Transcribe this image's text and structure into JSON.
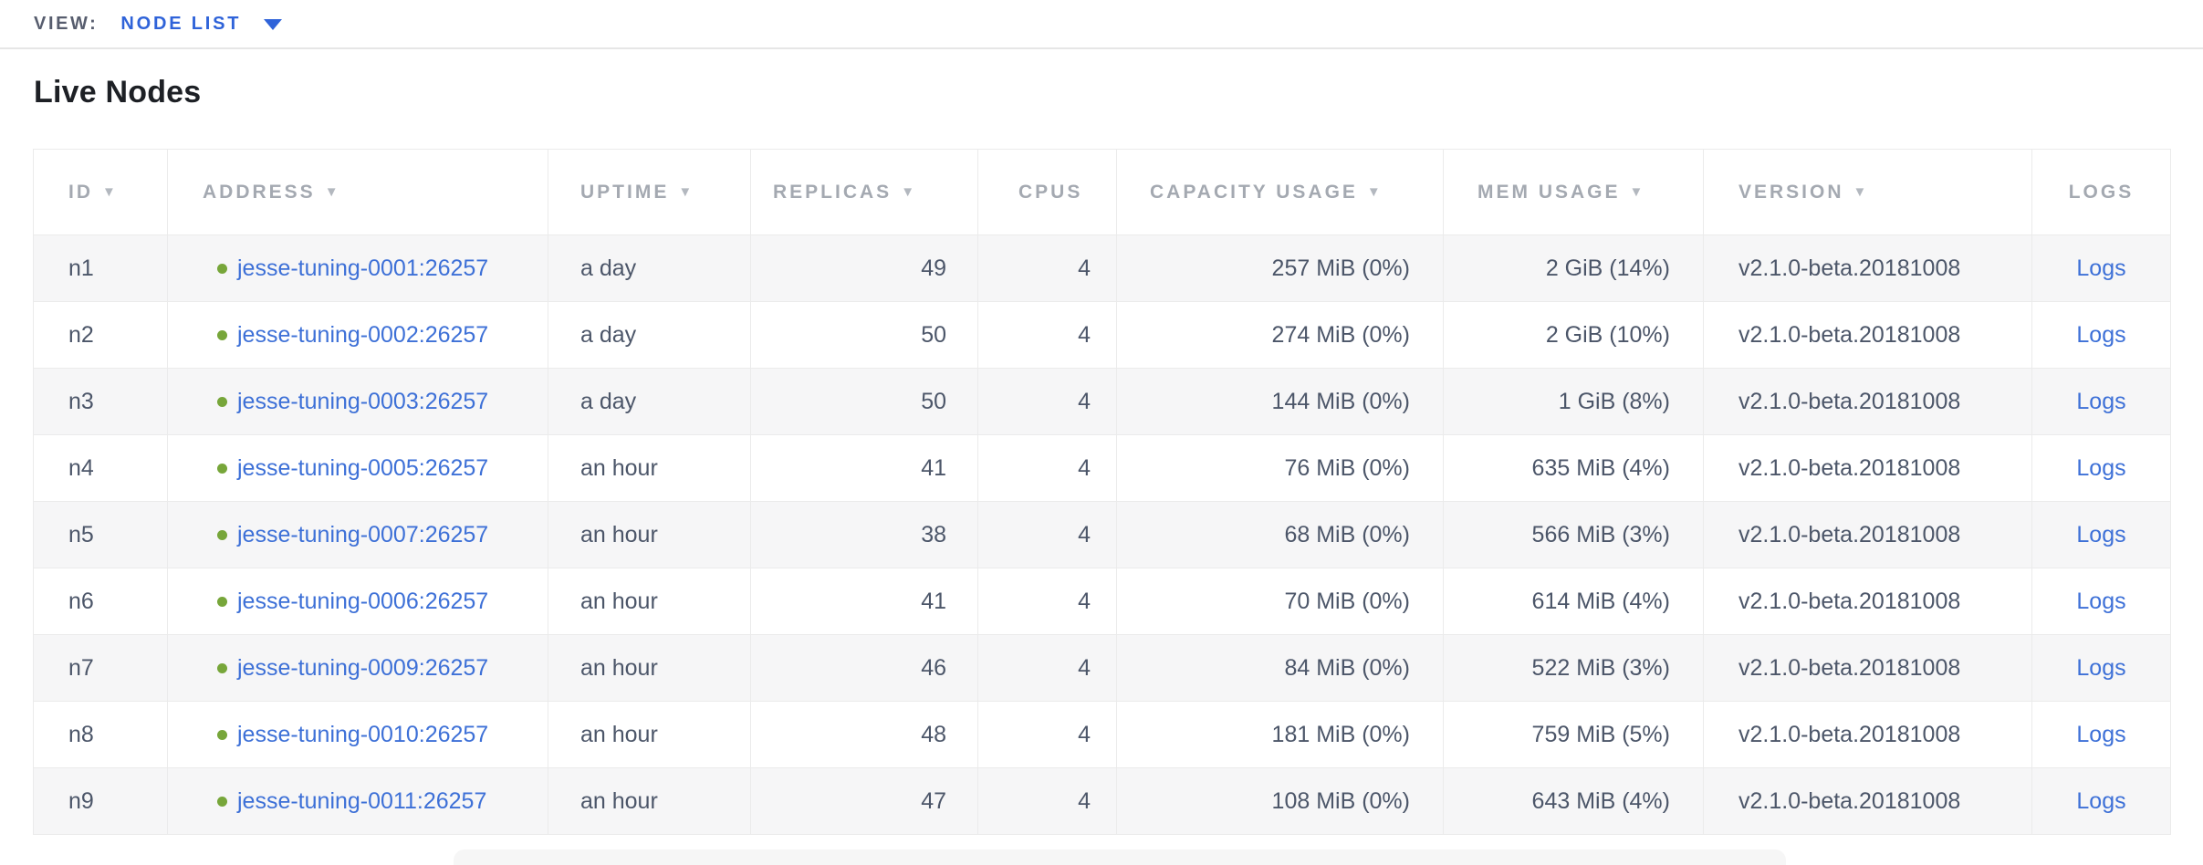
{
  "view_bar": {
    "label": "VIEW:",
    "selected": "NODE LIST"
  },
  "page_title": "Live Nodes",
  "icons": {
    "sort_desc": "▼",
    "dropdown_caret": "caret-down",
    "node_status": "live-dot"
  },
  "colors": {
    "accent_blue": "#2f63d9",
    "link": "#3d70d7",
    "live_green": "#77a63a",
    "header_text": "#a4a9b1",
    "cell_text": "#4c5669",
    "row_alt_bg": "#f6f6f7",
    "border": "#ebebeb"
  },
  "table": {
    "columns": [
      {
        "key": "id",
        "label": "ID",
        "sortable": true
      },
      {
        "key": "address",
        "label": "ADDRESS",
        "sortable": true
      },
      {
        "key": "uptime",
        "label": "UPTIME",
        "sortable": true
      },
      {
        "key": "replicas",
        "label": "REPLICAS",
        "sortable": true
      },
      {
        "key": "cpus",
        "label": "CPUS",
        "sortable": false
      },
      {
        "key": "capacity",
        "label": "CAPACITY USAGE",
        "sortable": true
      },
      {
        "key": "mem",
        "label": "MEM USAGE",
        "sortable": true
      },
      {
        "key": "version",
        "label": "VERSION",
        "sortable": true
      },
      {
        "key": "logs",
        "label": "LOGS",
        "sortable": false
      }
    ],
    "rows": [
      {
        "id": "n1",
        "address": "jesse-tuning-0001:26257",
        "uptime": "a day",
        "replicas": "49",
        "cpus": "4",
        "capacity": "257 MiB (0%)",
        "mem": "2 GiB (14%)",
        "version": "v2.1.0-beta.20181008",
        "logs": "Logs"
      },
      {
        "id": "n2",
        "address": "jesse-tuning-0002:26257",
        "uptime": "a day",
        "replicas": "50",
        "cpus": "4",
        "capacity": "274 MiB (0%)",
        "mem": "2 GiB (10%)",
        "version": "v2.1.0-beta.20181008",
        "logs": "Logs"
      },
      {
        "id": "n3",
        "address": "jesse-tuning-0003:26257",
        "uptime": "a day",
        "replicas": "50",
        "cpus": "4",
        "capacity": "144 MiB (0%)",
        "mem": "1 GiB (8%)",
        "version": "v2.1.0-beta.20181008",
        "logs": "Logs"
      },
      {
        "id": "n4",
        "address": "jesse-tuning-0005:26257",
        "uptime": "an hour",
        "replicas": "41",
        "cpus": "4",
        "capacity": "76 MiB (0%)",
        "mem": "635 MiB (4%)",
        "version": "v2.1.0-beta.20181008",
        "logs": "Logs"
      },
      {
        "id": "n5",
        "address": "jesse-tuning-0007:26257",
        "uptime": "an hour",
        "replicas": "38",
        "cpus": "4",
        "capacity": "68 MiB (0%)",
        "mem": "566 MiB (3%)",
        "version": "v2.1.0-beta.20181008",
        "logs": "Logs"
      },
      {
        "id": "n6",
        "address": "jesse-tuning-0006:26257",
        "uptime": "an hour",
        "replicas": "41",
        "cpus": "4",
        "capacity": "70 MiB (0%)",
        "mem": "614 MiB (4%)",
        "version": "v2.1.0-beta.20181008",
        "logs": "Logs"
      },
      {
        "id": "n7",
        "address": "jesse-tuning-0009:26257",
        "uptime": "an hour",
        "replicas": "46",
        "cpus": "4",
        "capacity": "84 MiB (0%)",
        "mem": "522 MiB (3%)",
        "version": "v2.1.0-beta.20181008",
        "logs": "Logs"
      },
      {
        "id": "n8",
        "address": "jesse-tuning-0010:26257",
        "uptime": "an hour",
        "replicas": "48",
        "cpus": "4",
        "capacity": "181 MiB (0%)",
        "mem": "759 MiB (5%)",
        "version": "v2.1.0-beta.20181008",
        "logs": "Logs"
      },
      {
        "id": "n9",
        "address": "jesse-tuning-0011:26257",
        "uptime": "an hour",
        "replicas": "47",
        "cpus": "4",
        "capacity": "108 MiB (0%)",
        "mem": "643 MiB (4%)",
        "version": "v2.1.0-beta.20181008",
        "logs": "Logs"
      }
    ]
  }
}
